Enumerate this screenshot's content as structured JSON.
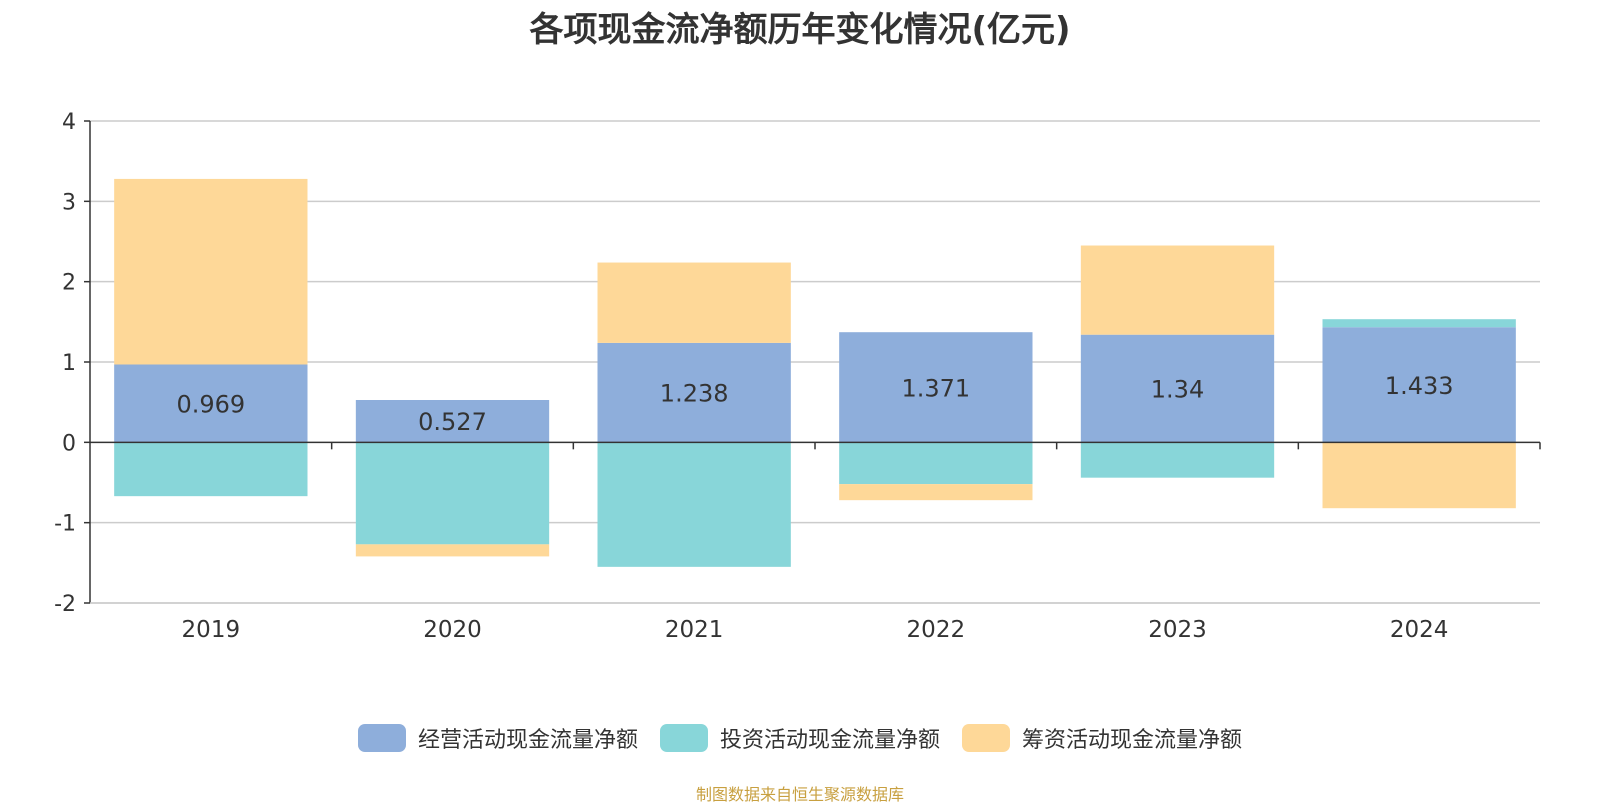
{
  "chart_data": {
    "type": "bar",
    "stacked": true,
    "title": "各项现金流净额历年变化情况(亿元)",
    "categories": [
      "2019",
      "2020",
      "2021",
      "2022",
      "2023",
      "2024"
    ],
    "series": [
      {
        "name": "经营活动现金流量净额",
        "color": "#8eaedb",
        "values": [
          0.969,
          0.527,
          1.238,
          1.371,
          1.34,
          1.433
        ],
        "show_labels": true
      },
      {
        "name": "投资活动现金流量净额",
        "color": "#88d6d9",
        "values": [
          -0.67,
          -1.27,
          -1.55,
          -0.52,
          -0.44,
          0.1
        ],
        "show_labels": false
      },
      {
        "name": "筹资活动现金流量净额",
        "color": "#fed898",
        "values": [
          2.31,
          -0.15,
          1.0,
          -0.2,
          1.11,
          -0.82
        ],
        "show_labels": false
      }
    ],
    "ylim": [
      -2,
      4
    ],
    "yticks": [
      -2,
      -1,
      0,
      1,
      2,
      3,
      4
    ],
    "grid": true,
    "legend_position": "bottom",
    "source": "制图数据来自恒生聚源数据库"
  }
}
